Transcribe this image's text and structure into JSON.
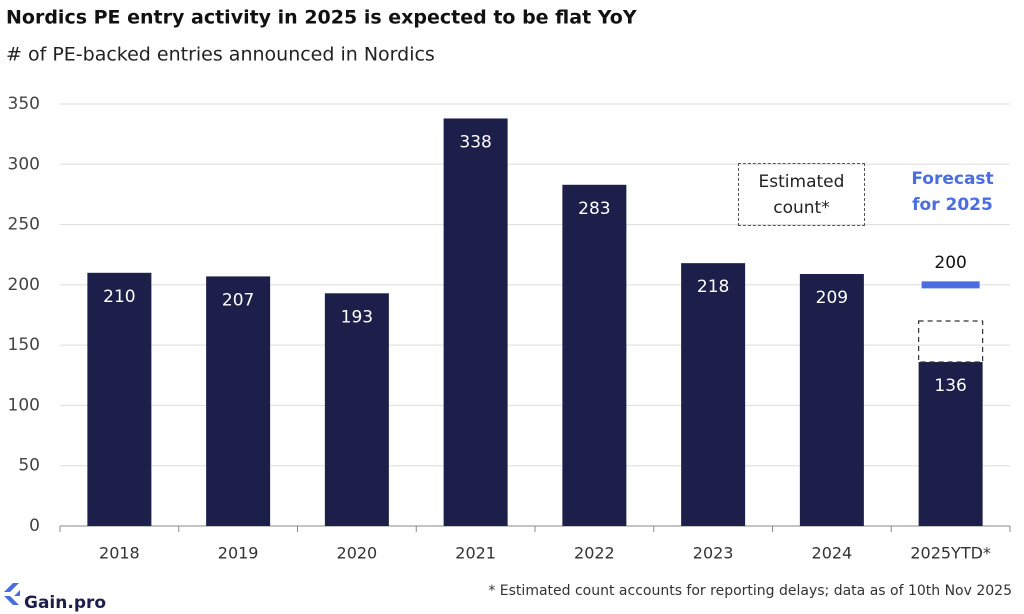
{
  "chart_data": {
    "type": "bar",
    "title": "Nordics PE entry activity in 2025 is expected to be flat YoY",
    "subtitle": "# of PE-backed entries announced in Nordics",
    "categories": [
      "2018",
      "2019",
      "2020",
      "2021",
      "2022",
      "2023",
      "2024",
      "2025YTD*"
    ],
    "values": [
      210,
      207,
      193,
      338,
      283,
      218,
      209,
      136
    ],
    "color": "#1c1f4a",
    "estimated": {
      "label": "Estimated count*",
      "values": [
        null,
        null,
        null,
        null,
        null,
        null,
        null,
        170
      ]
    },
    "forecast": {
      "label": "Forecast for 2025",
      "color": "#4a6ee0",
      "values": [
        null,
        null,
        null,
        null,
        null,
        null,
        null,
        200
      ]
    },
    "ylim": [
      0,
      350
    ],
    "yticks": [
      0,
      50,
      100,
      150,
      200,
      250,
      300,
      350
    ],
    "grid": true,
    "footnote": "* Estimated count accounts for reporting delays; data as of 10th Nov 2025",
    "logo": "Gain.pro"
  }
}
